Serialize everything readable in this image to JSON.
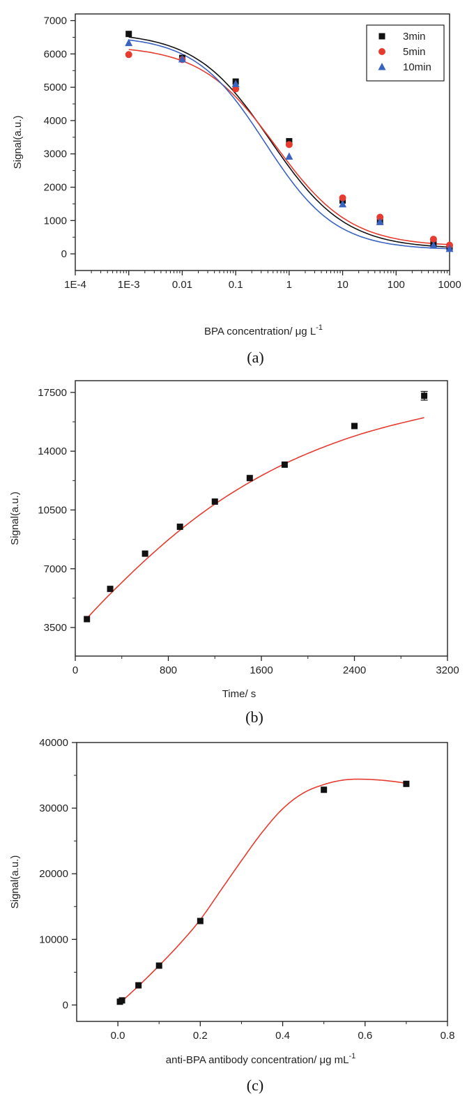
{
  "chart_data": [
    {
      "type": "scatter",
      "panel_label": "(a)",
      "xlabel": "BPA concentration/ μg L",
      "xlabel_sup": "-1",
      "ylabel": "Signal(a.u.)",
      "xscale": "log",
      "xlim": [
        0.0001,
        1000
      ],
      "ylim": [
        -500,
        7200
      ],
      "xticks": [
        0.0001,
        0.001,
        0.01,
        0.1,
        1,
        10,
        100,
        1000
      ],
      "xtick_labels": [
        "1E-4",
        "1E-3",
        "0.01",
        "0.1",
        "1",
        "10",
        "100",
        "1000"
      ],
      "yticks": [
        0,
        1000,
        2000,
        3000,
        4000,
        5000,
        6000,
        7000
      ],
      "ytick_labels": [
        "0",
        "1000",
        "2000",
        "3000",
        "4000",
        "5000",
        "6000",
        "7000"
      ],
      "legend_position": "top-right",
      "fit": "sigmoid",
      "series": [
        {
          "name": "3min",
          "marker": "square",
          "color": "#111111",
          "line_color": "#111111",
          "x": [
            0.001,
            0.01,
            0.1,
            1,
            10,
            50,
            500,
            1000
          ],
          "y": [
            6600,
            5880,
            5170,
            3380,
            1600,
            960,
            300,
            200
          ]
        },
        {
          "name": "5min",
          "marker": "circle",
          "color": "#e63b2e",
          "line_color": "#e63b2e",
          "x": [
            0.001,
            0.01,
            0.1,
            1,
            10,
            50,
            500,
            1000
          ],
          "y": [
            5980,
            5830,
            4950,
            3280,
            1680,
            1100,
            440,
            260
          ]
        },
        {
          "name": "10min",
          "marker": "triangle",
          "color": "#3a62c0",
          "line_color": "#3a62c0",
          "x": [
            0.001,
            0.01,
            0.1,
            1,
            10,
            50,
            500,
            1000
          ],
          "y": [
            6330,
            5840,
            5100,
            2920,
            1490,
            960,
            250,
            150
          ]
        }
      ]
    },
    {
      "type": "scatter",
      "panel_label": "(b)",
      "xlabel": "Time/ s",
      "ylabel": "Signal(a.u.)",
      "xlim": [
        0,
        3200
      ],
      "ylim": [
        1800,
        18200
      ],
      "xticks": [
        0,
        800,
        1600,
        2400,
        3200
      ],
      "xtick_labels": [
        "0",
        "800",
        "1600",
        "2400",
        "3200"
      ],
      "yticks": [
        3500,
        7000,
        10500,
        14000,
        17500
      ],
      "ytick_labels": [
        "3500",
        "7000",
        "10500",
        "14000",
        "17500"
      ],
      "series": [
        {
          "marker": "square",
          "color": "#111111",
          "line_color": "#e63b2e",
          "x": [
            100,
            300,
            600,
            900,
            1200,
            1500,
            1800,
            2400,
            3000
          ],
          "y": [
            4000,
            5800,
            7900,
            9500,
            11000,
            12400,
            13200,
            15500,
            17300
          ],
          "error": [
            0,
            0,
            0,
            0,
            0,
            0,
            0,
            0,
            260
          ],
          "fit_x": [
            100,
            300,
            600,
            900,
            1200,
            1500,
            1800,
            2100,
            2400,
            2700,
            3000
          ],
          "fit_y": [
            4050,
            5500,
            7500,
            9300,
            10850,
            12150,
            13250,
            14150,
            14900,
            15500,
            16000
          ]
        }
      ]
    },
    {
      "type": "scatter",
      "panel_label": "(c)",
      "xlabel": "anti-BPA antibody concentration/ μg mL",
      "xlabel_sup": "-1",
      "ylabel": "Signal(a.u.)",
      "xlim": [
        -0.1,
        0.8
      ],
      "ylim": [
        -2500,
        40000
      ],
      "xticks": [
        0.0,
        0.2,
        0.4,
        0.6,
        0.8
      ],
      "xtick_labels": [
        "0.0",
        "0.2",
        "0.4",
        "0.6",
        "0.8"
      ],
      "yticks": [
        0,
        10000,
        20000,
        30000,
        40000
      ],
      "ytick_labels": [
        "0",
        "10000",
        "20000",
        "30000",
        "40000"
      ],
      "series": [
        {
          "marker": "square",
          "color": "#111111",
          "line_color": "#e63b2e",
          "x": [
            0.005,
            0.01,
            0.05,
            0.1,
            0.2,
            0.5,
            0.7
          ],
          "y": [
            500,
            700,
            3000,
            6000,
            12800,
            32800,
            33700
          ],
          "fit_x": [
            0.005,
            0.05,
            0.1,
            0.15,
            0.2,
            0.25,
            0.3,
            0.35,
            0.4,
            0.45,
            0.5,
            0.55,
            0.6,
            0.65,
            0.7
          ],
          "fit_y": [
            300,
            2900,
            6000,
            9300,
            13000,
            17500,
            22000,
            26300,
            29900,
            32300,
            33600,
            34300,
            34400,
            34200,
            33800
          ]
        }
      ]
    }
  ]
}
